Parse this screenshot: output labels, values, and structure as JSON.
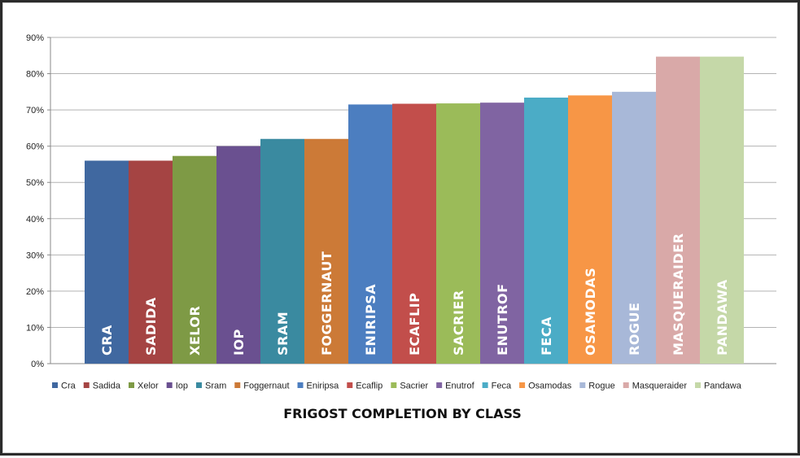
{
  "chart_data": {
    "type": "bar",
    "title": "FRIGOST COMPLETION BY CLASS",
    "xlabel": "",
    "ylabel": "",
    "ylim": [
      0,
      90
    ],
    "yticks": [
      "0%",
      "10%",
      "20%",
      "30%",
      "40%",
      "50%",
      "60%",
      "70%",
      "80%",
      "90%"
    ],
    "grid": true,
    "legend_position": "bottom",
    "series": [
      {
        "name": "Cra",
        "value": 56,
        "bar_label": "CRA",
        "color": "#4068A0"
      },
      {
        "name": "Sadida",
        "value": 56,
        "bar_label": "SADIDA",
        "color": "#A54443"
      },
      {
        "name": "Xelor",
        "value": 57.3,
        "bar_label": "XELOR",
        "color": "#7E9A45"
      },
      {
        "name": "Iop",
        "value": 60,
        "bar_label": "IOP",
        "color": "#6A5090"
      },
      {
        "name": "Sram",
        "value": 62,
        "bar_label": "SRAM",
        "color": "#3A8AA0"
      },
      {
        "name": "Foggernaut",
        "value": 62,
        "bar_label": "FOGGERNAUT",
        "color": "#CC7A37"
      },
      {
        "name": "Eniripsa",
        "value": 71.5,
        "bar_label": "ENIRIPSA",
        "color": "#4C7EC0"
      },
      {
        "name": "Ecaflip",
        "value": 71.7,
        "bar_label": "ECAFLIP",
        "color": "#C24E4B"
      },
      {
        "name": "Sacrier",
        "value": 71.8,
        "bar_label": "SACRIER",
        "color": "#9BBB59"
      },
      {
        "name": "Enutrof",
        "value": 72,
        "bar_label": "ENUTROF",
        "color": "#8064A2"
      },
      {
        "name": "Feca",
        "value": 73.4,
        "bar_label": "FECA",
        "color": "#4BACC6"
      },
      {
        "name": "Osamodas",
        "value": 74,
        "bar_label": "OSAMODAS",
        "color": "#F79646"
      },
      {
        "name": "Rogue",
        "value": 75,
        "bar_label": "ROGUE",
        "color": "#A8B8D8"
      },
      {
        "name": "Masqueraider",
        "value": 84.7,
        "bar_label": "MASQUERAIDER",
        "color": "#D9A9A8"
      },
      {
        "name": "Pandawa",
        "value": 84.7,
        "bar_label": "PANDAWA",
        "color": "#C5D8A8"
      }
    ]
  }
}
